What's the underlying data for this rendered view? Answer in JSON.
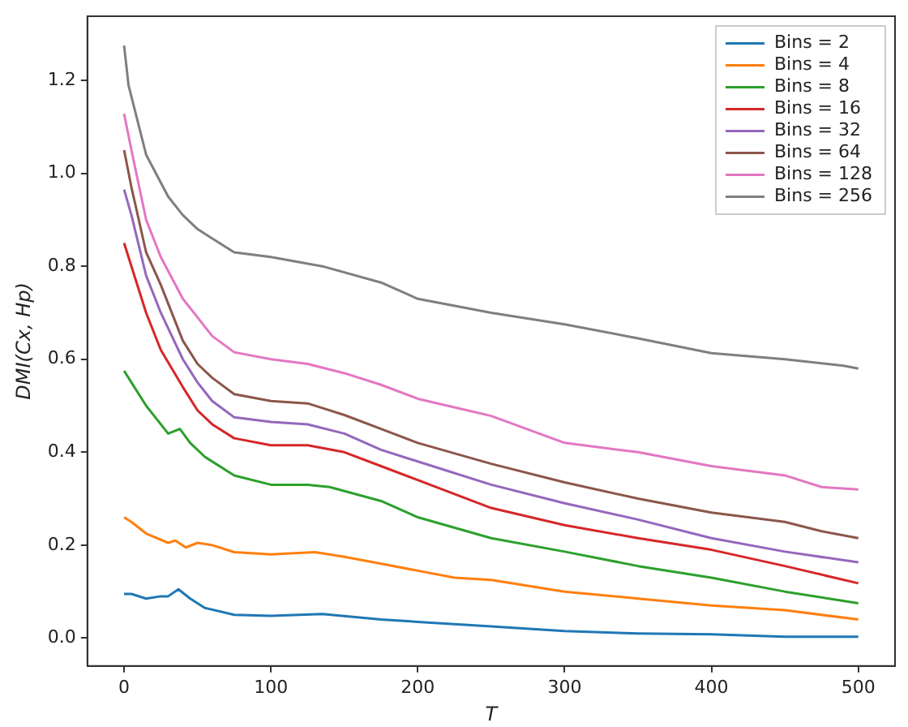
{
  "chart_data": {
    "type": "line",
    "xlabel": "T",
    "ylabel": "DMI(Cx, Hp)",
    "xlim": [
      -25,
      525
    ],
    "ylim": [
      -0.06,
      1.338
    ],
    "xticks": [
      0,
      100,
      200,
      300,
      400,
      500
    ],
    "yticks": [
      {
        "value": 0,
        "label": "0.0"
      },
      0.2,
      0.4,
      0.6,
      0.8,
      {
        "value": 1,
        "label": "1.0"
      },
      1.2
    ],
    "grid": false,
    "legend": "top right",
    "marker": "none",
    "line_style": "solid",
    "series": [
      {
        "name": "Bins = 2",
        "color": "#1f77b4",
        "x": [
          0,
          5,
          15,
          25,
          30,
          37,
          45,
          55,
          75,
          100,
          135,
          175,
          200,
          250,
          300,
          350,
          400,
          450,
          500
        ],
        "values": [
          0.095,
          0.095,
          0.085,
          0.09,
          0.09,
          0.105,
          0.085,
          0.065,
          0.05,
          0.048,
          0.052,
          0.04,
          0.035,
          0.025,
          0.015,
          0.01,
          0.008,
          0.003,
          0.003
        ]
      },
      {
        "name": "Bins = 4",
        "color": "#ff7f0e",
        "x": [
          0,
          5,
          15,
          30,
          35,
          42,
          50,
          60,
          75,
          100,
          130,
          150,
          175,
          200,
          225,
          250,
          300,
          350,
          400,
          450,
          500
        ],
        "values": [
          0.26,
          0.25,
          0.225,
          0.205,
          0.21,
          0.195,
          0.205,
          0.2,
          0.185,
          0.18,
          0.185,
          0.175,
          0.16,
          0.145,
          0.13,
          0.125,
          0.1,
          0.085,
          0.07,
          0.06,
          0.04
        ]
      },
      {
        "name": "Bins = 8",
        "color": "#2ca02c",
        "x": [
          0,
          5,
          15,
          25,
          30,
          38,
          45,
          55,
          75,
          100,
          125,
          140,
          175,
          200,
          250,
          300,
          350,
          400,
          450,
          500
        ],
        "values": [
          0.575,
          0.55,
          0.5,
          0.46,
          0.44,
          0.45,
          0.42,
          0.39,
          0.35,
          0.33,
          0.33,
          0.325,
          0.295,
          0.26,
          0.215,
          0.186,
          0.155,
          0.13,
          0.1,
          0.075
        ]
      },
      {
        "name": "Bins = 16",
        "color": "#d62728",
        "x": [
          0,
          5,
          15,
          25,
          40,
          50,
          60,
          75,
          100,
          125,
          150,
          175,
          200,
          250,
          300,
          350,
          400,
          450,
          500
        ],
        "values": [
          0.85,
          0.8,
          0.7,
          0.62,
          0.54,
          0.49,
          0.46,
          0.43,
          0.415,
          0.415,
          0.4,
          0.37,
          0.34,
          0.28,
          0.243,
          0.215,
          0.19,
          0.155,
          0.118
        ]
      },
      {
        "name": "Bins = 32",
        "color": "#9467bd",
        "x": [
          0,
          5,
          15,
          25,
          40,
          50,
          60,
          75,
          100,
          125,
          150,
          175,
          200,
          250,
          300,
          350,
          400,
          450,
          500
        ],
        "values": [
          0.965,
          0.91,
          0.78,
          0.7,
          0.6,
          0.55,
          0.51,
          0.475,
          0.465,
          0.46,
          0.44,
          0.405,
          0.38,
          0.33,
          0.29,
          0.255,
          0.215,
          0.186,
          0.163
        ]
      },
      {
        "name": "Bins = 64",
        "color": "#8c564b",
        "x": [
          0,
          5,
          15,
          25,
          40,
          50,
          60,
          75,
          100,
          125,
          150,
          175,
          200,
          250,
          300,
          350,
          400,
          450,
          475,
          500
        ],
        "values": [
          1.05,
          0.97,
          0.83,
          0.76,
          0.64,
          0.59,
          0.56,
          0.525,
          0.51,
          0.505,
          0.48,
          0.45,
          0.42,
          0.375,
          0.335,
          0.3,
          0.27,
          0.25,
          0.23,
          0.215
        ]
      },
      {
        "name": "Bins = 128",
        "color": "#e377c2",
        "x": [
          0,
          5,
          15,
          25,
          40,
          50,
          60,
          75,
          100,
          125,
          150,
          175,
          200,
          250,
          300,
          350,
          400,
          450,
          475,
          500
        ],
        "values": [
          1.128,
          1.05,
          0.9,
          0.82,
          0.73,
          0.69,
          0.65,
          0.615,
          0.6,
          0.59,
          0.57,
          0.545,
          0.515,
          0.478,
          0.42,
          0.4,
          0.37,
          0.35,
          0.325,
          0.32
        ]
      },
      {
        "name": "Bins = 256",
        "color": "#7f7f7f",
        "x": [
          0,
          3,
          15,
          30,
          40,
          50,
          75,
          100,
          135,
          175,
          200,
          250,
          300,
          350,
          400,
          450,
          490,
          500
        ],
        "values": [
          1.275,
          1.19,
          1.04,
          0.95,
          0.91,
          0.88,
          0.83,
          0.82,
          0.8,
          0.765,
          0.73,
          0.7,
          0.675,
          0.645,
          0.613,
          0.6,
          0.586,
          0.58
        ]
      }
    ]
  }
}
